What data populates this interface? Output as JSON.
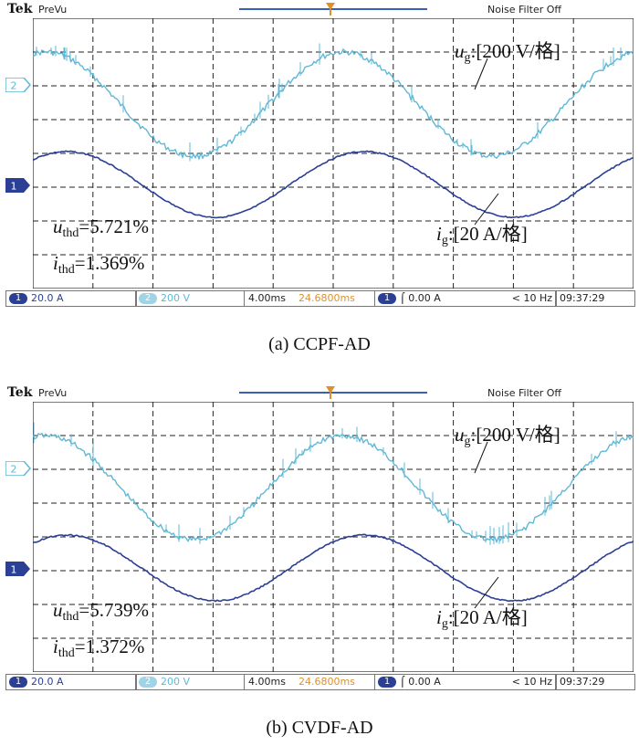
{
  "scope": {
    "brand": "Tek",
    "mode": "PreVu",
    "noise_filter": "Noise Filter Off",
    "ch1_label": "1",
    "ch2_label": "2",
    "trigger_marker": "T"
  },
  "bottombar": {
    "ch1_badge": "1",
    "ch1_scale": "20.0 A",
    "ch2_badge": "2",
    "ch2_scale": "200 V",
    "timebase": "4.00ms",
    "position": "24.6800ms",
    "trig_badge": "1",
    "trig_level": "⌠ 0.00 A",
    "freq": "< 10 Hz",
    "clock": "09:37:29"
  },
  "panels": [
    {
      "caption": "(a) CCPF-AD",
      "ug_sym": "u",
      "ug_sub": "g",
      "ug_scale": ":[200 V/格]",
      "ig_sym": "i",
      "ig_sub": "g",
      "ig_scale": ":[20 A/格]",
      "uthd_sym": "u",
      "uthd_sub": "thd",
      "uthd_val": "=5.721%",
      "ithd_sym": "i",
      "ithd_sub": "thd",
      "ithd_val": "=1.369%"
    },
    {
      "caption": "(b) CVDF-AD",
      "ug_sym": "u",
      "ug_sub": "g",
      "ug_scale": ":[200 V/格]",
      "ig_sym": "i",
      "ig_sub": "g",
      "ig_scale": ":[20 A/格]",
      "uthd_sym": "u",
      "uthd_sub": "thd",
      "uthd_val": "=5.739%",
      "ithd_sym": "i",
      "ithd_sub": "thd",
      "ithd_val": "=1.372%"
    }
  ],
  "colors": {
    "ch1": "#2b3f95",
    "ch2": "#5fb8d6",
    "grid": "#222222",
    "screen_bg": "#ffffff"
  }
}
